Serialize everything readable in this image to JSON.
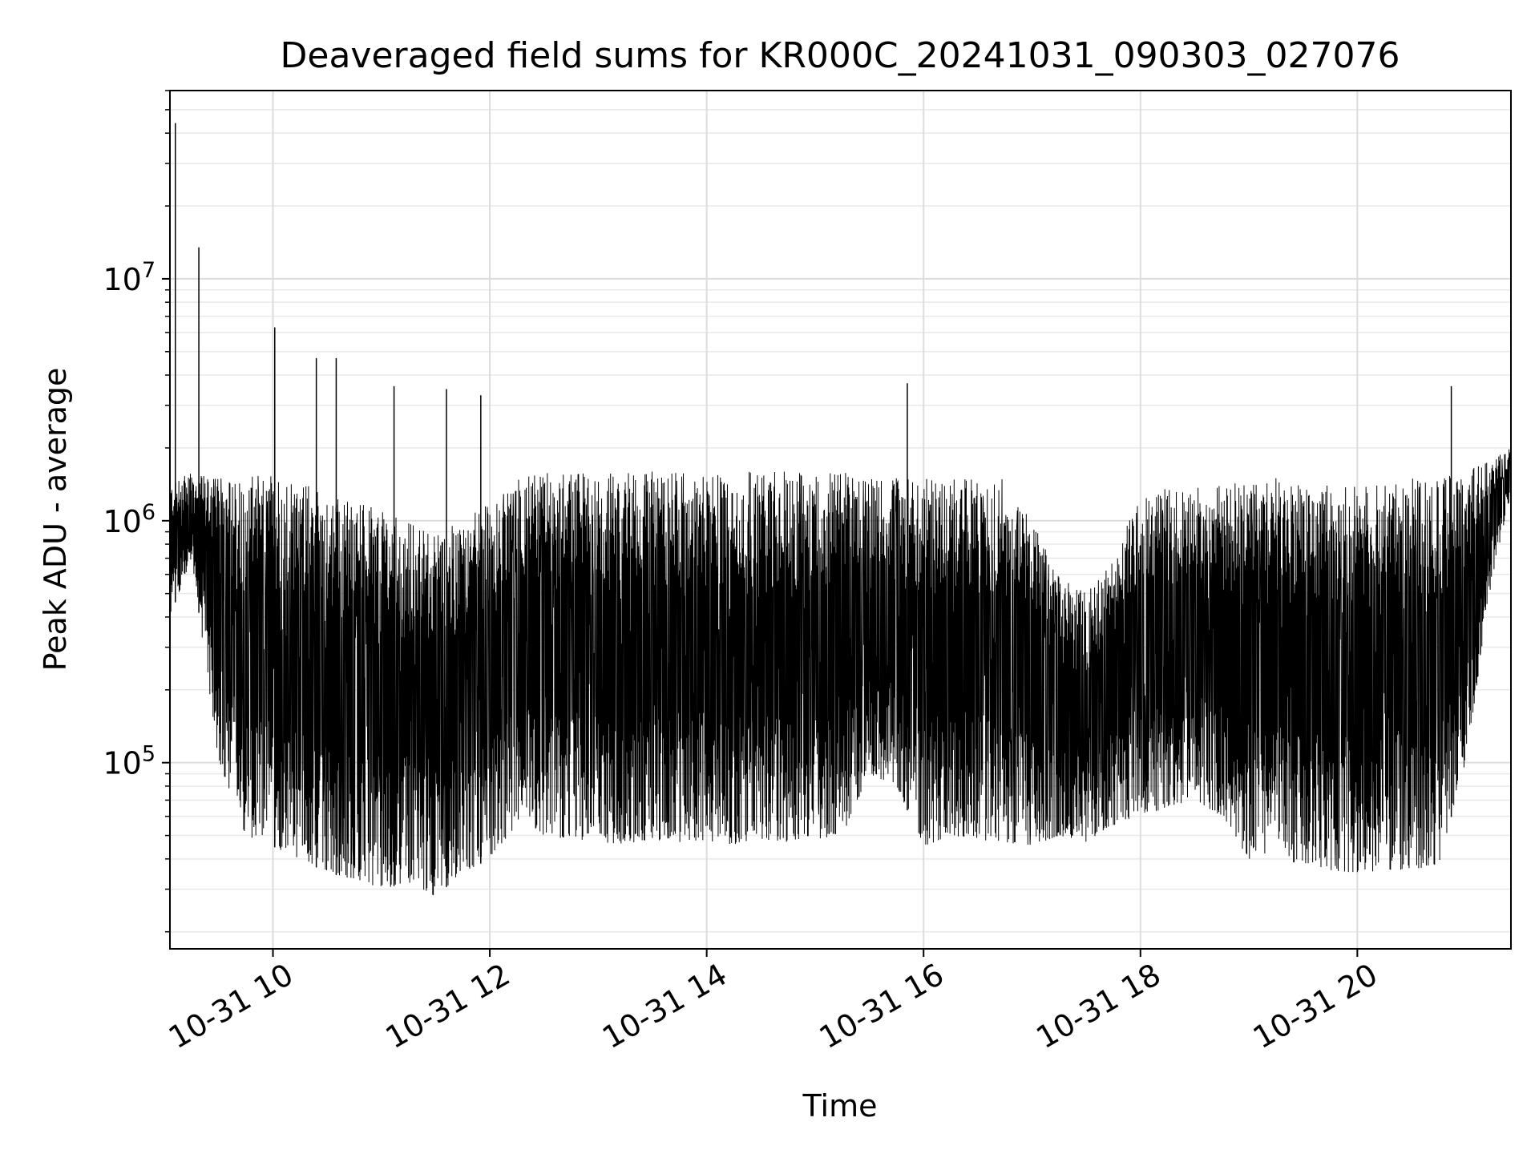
{
  "chart_data": {
    "type": "line",
    "title": "Deaveraged field sums for KR000C_20241031_090303_027076",
    "xlabel": "Time",
    "ylabel": "Peak ADU - average",
    "yscale": "log",
    "ylim": [
      17000,
      60000000
    ],
    "xlim": [
      "2024-10-31 09:03",
      "2024-10-31 21:25"
    ],
    "grid": true,
    "color": "#000000",
    "x_tick_labels": [
      {
        "at": "2024-10-31 10:00",
        "label": "10-31 10"
      },
      {
        "at": "2024-10-31 12:00",
        "label": "10-31 12"
      },
      {
        "at": "2024-10-31 14:00",
        "label": "10-31 14"
      },
      {
        "at": "2024-10-31 16:00",
        "label": "10-31 16"
      },
      {
        "at": "2024-10-31 18:00",
        "label": "10-31 18"
      },
      {
        "at": "2024-10-31 20:00",
        "label": "10-31 20"
      }
    ],
    "y_tick_labels": [
      {
        "value": 100000,
        "base": "10",
        "exp": "5"
      },
      {
        "value": 1000000,
        "base": "10",
        "exp": "6"
      },
      {
        "value": 10000000,
        "base": "10",
        "exp": "7"
      }
    ],
    "series": [
      {
        "x": [
          "2024-10-31 09:03",
          "2024-10-31 09:15",
          "2024-10-31 09:30",
          "2024-10-31 09:45",
          "2024-10-31 10:00",
          "2024-10-31 10:15",
          "2024-10-31 10:30",
          "2024-10-31 10:45",
          "2024-10-31 11:00",
          "2024-10-31 11:15",
          "2024-10-31 11:30",
          "2024-10-31 11:45",
          "2024-10-31 12:00",
          "2024-10-31 12:15",
          "2024-10-31 12:30",
          "2024-10-31 12:45",
          "2024-10-31 13:00",
          "2024-10-31 13:15",
          "2024-10-31 13:30",
          "2024-10-31 13:45",
          "2024-10-31 14:00",
          "2024-10-31 14:15",
          "2024-10-31 14:30",
          "2024-10-31 14:45",
          "2024-10-31 15:00",
          "2024-10-31 15:15",
          "2024-10-31 15:30",
          "2024-10-31 15:45",
          "2024-10-31 16:00",
          "2024-10-31 16:15",
          "2024-10-31 16:30",
          "2024-10-31 16:45",
          "2024-10-31 17:00",
          "2024-10-31 17:15",
          "2024-10-31 17:30",
          "2024-10-31 17:45",
          "2024-10-31 18:00",
          "2024-10-31 18:15",
          "2024-10-31 18:30",
          "2024-10-31 18:45",
          "2024-10-31 19:00",
          "2024-10-31 19:15",
          "2024-10-31 19:30",
          "2024-10-31 19:45",
          "2024-10-31 20:00",
          "2024-10-31 20:15",
          "2024-10-31 20:30",
          "2024-10-31 20:45",
          "2024-10-31 21:00",
          "2024-10-31 21:15",
          "2024-10-31 21:25"
        ],
        "low": [
          400000,
          700000,
          100000,
          50000,
          45000,
          40000,
          35000,
          33000,
          30000,
          32000,
          28000,
          35000,
          40000,
          55000,
          50000,
          48000,
          47000,
          46000,
          48000,
          47000,
          47000,
          46000,
          48000,
          47000,
          48000,
          50000,
          90000,
          80000,
          45000,
          50000,
          48000,
          47000,
          45000,
          50000,
          47000,
          55000,
          60000,
          65000,
          70000,
          60000,
          40000,
          40000,
          38000,
          36000,
          35000,
          36000,
          36000,
          38000,
          100000,
          600000,
          1300000
        ],
        "high": [
          1400000,
          1600000,
          1500000,
          1500000,
          1600000,
          1500000,
          1300000,
          1200000,
          1100000,
          1000000,
          900000,
          1000000,
          1200000,
          1500000,
          1600000,
          1600000,
          1600000,
          1600000,
          1600000,
          1600000,
          1600000,
          1600000,
          1600000,
          1600000,
          1600000,
          1600000,
          1500000,
          1500000,
          1500000,
          1500000,
          1500000,
          1500000,
          1000000,
          600000,
          500000,
          700000,
          1300000,
          1400000,
          1400000,
          1400000,
          1500000,
          1500000,
          1400000,
          1400000,
          1400000,
          1400000,
          1500000,
          1500000,
          1600000,
          1800000,
          2000000
        ]
      }
    ],
    "spikes": [
      {
        "x": "2024-10-31 09:06",
        "y": 44000000
      },
      {
        "x": "2024-10-31 09:19",
        "y": 13500000
      },
      {
        "x": "2024-10-31 10:01",
        "y": 6300000
      },
      {
        "x": "2024-10-31 10:24",
        "y": 4700000
      },
      {
        "x": "2024-10-31 10:35",
        "y": 4700000
      },
      {
        "x": "2024-10-31 11:07",
        "y": 3600000
      },
      {
        "x": "2024-10-31 11:36",
        "y": 3500000
      },
      {
        "x": "2024-10-31 11:55",
        "y": 3300000
      },
      {
        "x": "2024-10-31 15:51",
        "y": 3700000
      },
      {
        "x": "2024-10-31 20:52",
        "y": 3600000
      }
    ]
  }
}
